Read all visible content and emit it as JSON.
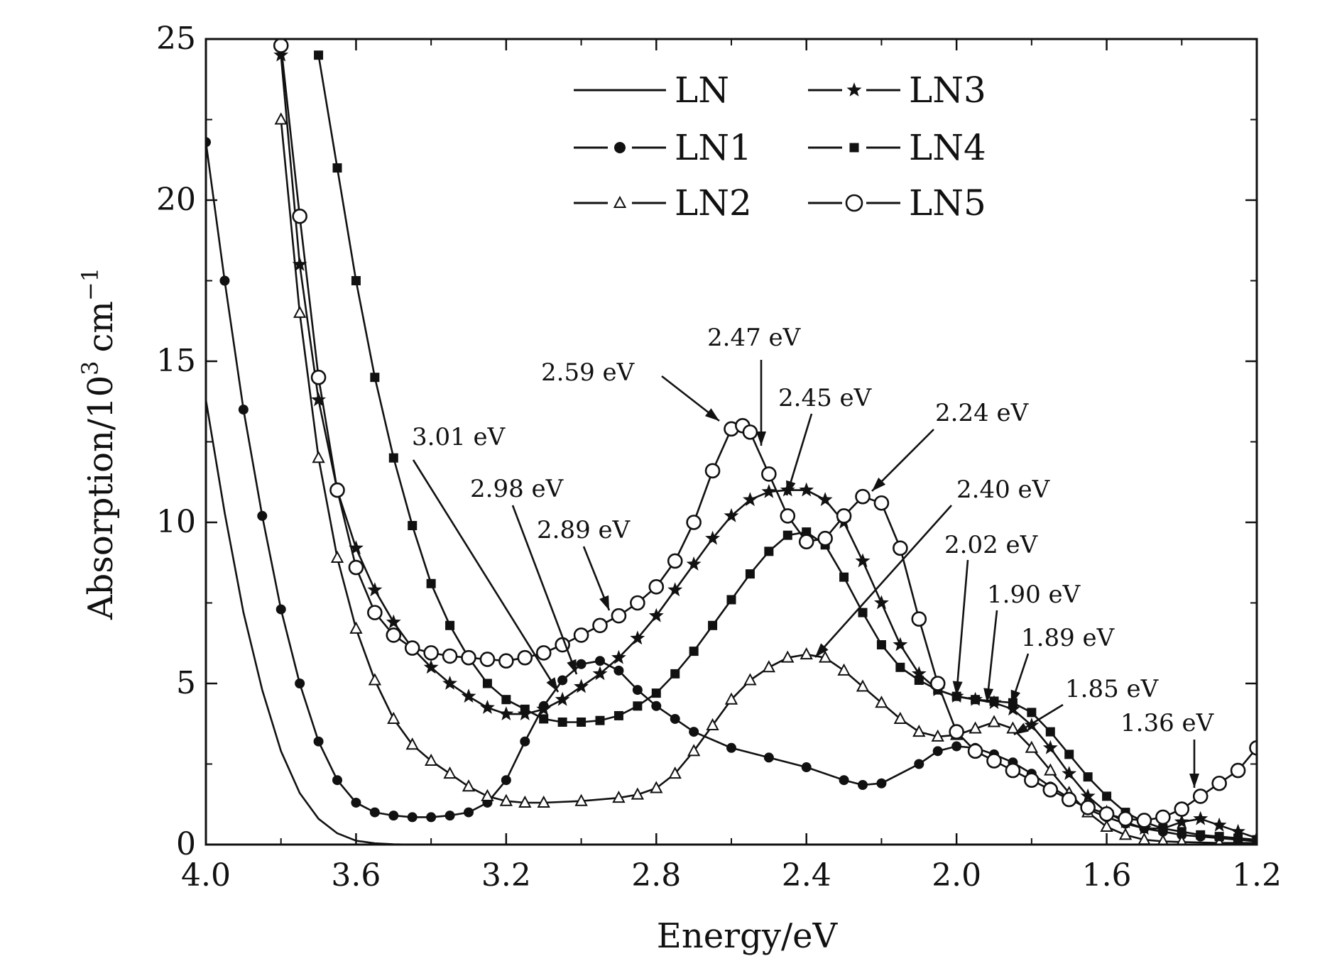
{
  "chart_data": {
    "type": "line",
    "title": "",
    "xlabel": "Energy/eV",
    "ylabel": "Absorption/10",
    "ylabel_sup": "3",
    "ylabel_unit": "cm",
    "ylabel_unit_sup": "−1",
    "xlim": [
      4.0,
      1.2
    ],
    "ylim": [
      0,
      25
    ],
    "x_reversed": true,
    "x_ticks": [
      4.0,
      3.6,
      3.2,
      2.8,
      2.4,
      2.0,
      1.6,
      1.2
    ],
    "x_tick_labels": [
      "4.0",
      "3.6",
      "3.2",
      "2.8",
      "2.4",
      "2.0",
      "1.6",
      "1.2"
    ],
    "y_ticks": [
      0,
      5,
      10,
      15,
      20,
      25
    ],
    "y_tick_labels": [
      "0",
      "5",
      "10",
      "15",
      "20",
      "25"
    ],
    "grid": false,
    "legend_position": "top-center",
    "series": [
      {
        "name": "LN",
        "marker": "none",
        "x": [
          4.0,
          3.95,
          3.9,
          3.85,
          3.8,
          3.75,
          3.7,
          3.65,
          3.6,
          3.55,
          3.5,
          3.45,
          3.4,
          3.3,
          3.2,
          3.0,
          2.6,
          2.2,
          1.8,
          1.4,
          1.2
        ],
        "y": [
          13.8,
          10.3,
          7.2,
          4.8,
          2.9,
          1.6,
          0.8,
          0.35,
          0.12,
          0.04,
          0.01,
          0,
          0,
          0,
          0,
          0,
          0,
          0,
          0,
          0,
          0
        ]
      },
      {
        "name": "LN1",
        "marker": "filled-circle",
        "x": [
          4.0,
          3.95,
          3.9,
          3.85,
          3.8,
          3.75,
          3.7,
          3.65,
          3.6,
          3.55,
          3.5,
          3.45,
          3.4,
          3.35,
          3.3,
          3.25,
          3.2,
          3.15,
          3.1,
          3.05,
          3.0,
          2.95,
          2.9,
          2.85,
          2.8,
          2.75,
          2.7,
          2.6,
          2.5,
          2.4,
          2.3,
          2.25,
          2.2,
          2.1,
          2.05,
          2.0,
          1.95,
          1.9,
          1.85,
          1.8,
          1.75,
          1.7,
          1.65,
          1.6,
          1.55,
          1.5,
          1.45,
          1.4,
          1.35,
          1.3,
          1.25,
          1.2
        ],
        "y": [
          21.8,
          17.5,
          13.5,
          10.2,
          7.3,
          5.0,
          3.2,
          2.0,
          1.3,
          1.0,
          0.9,
          0.85,
          0.85,
          0.9,
          1.0,
          1.3,
          2.0,
          3.2,
          4.3,
          5.1,
          5.6,
          5.7,
          5.4,
          4.8,
          4.3,
          3.9,
          3.5,
          3.0,
          2.7,
          2.4,
          2.0,
          1.85,
          1.9,
          2.5,
          2.9,
          3.05,
          3.0,
          2.8,
          2.55,
          2.2,
          1.8,
          1.45,
          1.1,
          0.85,
          0.65,
          0.5,
          0.4,
          0.3,
          0.25,
          0.2,
          0.15,
          0.1
        ]
      },
      {
        "name": "LN2",
        "marker": "open-triangle",
        "x": [
          3.8,
          3.75,
          3.7,
          3.65,
          3.6,
          3.55,
          3.5,
          3.45,
          3.4,
          3.35,
          3.3,
          3.25,
          3.2,
          3.15,
          3.1,
          3.0,
          2.9,
          2.85,
          2.8,
          2.75,
          2.7,
          2.65,
          2.6,
          2.55,
          2.5,
          2.45,
          2.4,
          2.35,
          2.3,
          2.25,
          2.2,
          2.15,
          2.1,
          2.05,
          2.0,
          1.95,
          1.9,
          1.85,
          1.8,
          1.75,
          1.7,
          1.65,
          1.6,
          1.55,
          1.5,
          1.45,
          1.4,
          1.3,
          1.2
        ],
        "y": [
          22.5,
          16.5,
          12.0,
          8.9,
          6.7,
          5.1,
          3.9,
          3.1,
          2.6,
          2.2,
          1.8,
          1.5,
          1.35,
          1.3,
          1.3,
          1.35,
          1.45,
          1.55,
          1.75,
          2.2,
          2.9,
          3.7,
          4.5,
          5.1,
          5.5,
          5.8,
          5.9,
          5.8,
          5.4,
          4.9,
          4.4,
          3.9,
          3.5,
          3.35,
          3.4,
          3.6,
          3.8,
          3.6,
          3.0,
          2.3,
          1.6,
          1.0,
          0.55,
          0.3,
          0.15,
          0.1,
          0.08,
          0.05,
          0.05
        ]
      },
      {
        "name": "LN3",
        "marker": "star",
        "x": [
          3.8,
          3.75,
          3.7,
          3.65,
          3.6,
          3.55,
          3.5,
          3.45,
          3.4,
          3.35,
          3.3,
          3.25,
          3.2,
          3.15,
          3.1,
          3.05,
          3.0,
          2.95,
          2.9,
          2.85,
          2.8,
          2.75,
          2.7,
          2.65,
          2.6,
          2.55,
          2.5,
          2.45,
          2.4,
          2.35,
          2.3,
          2.25,
          2.2,
          2.15,
          2.1,
          2.05,
          2.0,
          1.95,
          1.9,
          1.85,
          1.8,
          1.75,
          1.7,
          1.65,
          1.6,
          1.55,
          1.5,
          1.45,
          1.4,
          1.35,
          1.3,
          1.25,
          1.2
        ],
        "y": [
          24.5,
          18.0,
          13.8,
          11.0,
          9.2,
          7.9,
          6.9,
          6.1,
          5.5,
          5.0,
          4.6,
          4.25,
          4.05,
          4.05,
          4.2,
          4.5,
          4.9,
          5.3,
          5.8,
          6.4,
          7.1,
          7.9,
          8.7,
          9.5,
          10.2,
          10.7,
          10.95,
          11.0,
          11.0,
          10.7,
          10.0,
          8.8,
          7.5,
          6.2,
          5.3,
          4.8,
          4.6,
          4.5,
          4.4,
          4.2,
          3.7,
          3.0,
          2.2,
          1.5,
          1.0,
          0.7,
          0.5,
          0.5,
          0.7,
          0.8,
          0.6,
          0.4,
          0.2
        ]
      },
      {
        "name": "LN4",
        "marker": "filled-square",
        "x": [
          3.7,
          3.65,
          3.6,
          3.55,
          3.5,
          3.45,
          3.4,
          3.35,
          3.3,
          3.25,
          3.2,
          3.15,
          3.1,
          3.05,
          3.0,
          2.95,
          2.9,
          2.85,
          2.8,
          2.75,
          2.7,
          2.65,
          2.6,
          2.55,
          2.5,
          2.45,
          2.4,
          2.35,
          2.3,
          2.25,
          2.2,
          2.15,
          2.1,
          2.05,
          2.0,
          1.95,
          1.9,
          1.85,
          1.8,
          1.75,
          1.7,
          1.65,
          1.6,
          1.55,
          1.5,
          1.45,
          1.4,
          1.35,
          1.3,
          1.25,
          1.2
        ],
        "y": [
          24.5,
          21.0,
          17.5,
          14.5,
          12.0,
          9.9,
          8.1,
          6.8,
          5.8,
          5.0,
          4.5,
          4.2,
          3.9,
          3.8,
          3.8,
          3.85,
          4.0,
          4.3,
          4.7,
          5.3,
          6.0,
          6.8,
          7.6,
          8.4,
          9.1,
          9.6,
          9.7,
          9.3,
          8.3,
          7.2,
          6.2,
          5.5,
          5.1,
          4.8,
          4.6,
          4.5,
          4.45,
          4.4,
          4.1,
          3.5,
          2.8,
          2.1,
          1.5,
          1.0,
          0.7,
          0.5,
          0.4,
          0.3,
          0.25,
          0.2,
          0.15
        ]
      },
      {
        "name": "LN5",
        "marker": "open-circle",
        "x": [
          3.8,
          3.75,
          3.7,
          3.65,
          3.6,
          3.55,
          3.5,
          3.45,
          3.4,
          3.35,
          3.3,
          3.25,
          3.2,
          3.15,
          3.1,
          3.05,
          3.0,
          2.95,
          2.9,
          2.85,
          2.8,
          2.75,
          2.7,
          2.65,
          2.6,
          2.57,
          2.55,
          2.5,
          2.45,
          2.4,
          2.35,
          2.3,
          2.25,
          2.2,
          2.15,
          2.1,
          2.05,
          2.0,
          1.95,
          1.9,
          1.85,
          1.8,
          1.75,
          1.7,
          1.65,
          1.6,
          1.55,
          1.5,
          1.45,
          1.4,
          1.35,
          1.3,
          1.25,
          1.2
        ],
        "y": [
          24.8,
          19.5,
          14.5,
          11.0,
          8.6,
          7.2,
          6.5,
          6.1,
          5.95,
          5.85,
          5.8,
          5.75,
          5.7,
          5.8,
          5.95,
          6.2,
          6.5,
          6.8,
          7.1,
          7.5,
          8.0,
          8.8,
          10.0,
          11.6,
          12.9,
          13.0,
          12.8,
          11.5,
          10.2,
          9.4,
          9.5,
          10.2,
          10.8,
          10.6,
          9.2,
          7.0,
          5.0,
          3.5,
          2.9,
          2.6,
          2.3,
          2.0,
          1.7,
          1.4,
          1.15,
          0.95,
          0.8,
          0.75,
          0.85,
          1.1,
          1.5,
          1.9,
          2.3,
          3.0
        ]
      }
    ],
    "annotations": [
      {
        "text": "2.59 eV",
        "x": 2.59
      },
      {
        "text": "2.47 eV",
        "x": 2.47
      },
      {
        "text": "2.45 eV",
        "x": 2.45
      },
      {
        "text": "2.24 eV",
        "x": 2.24
      },
      {
        "text": "3.01 eV",
        "x": 3.01
      },
      {
        "text": "2.98 eV",
        "x": 2.98
      },
      {
        "text": "2.89 eV",
        "x": 2.89
      },
      {
        "text": "2.40 eV",
        "x": 2.4
      },
      {
        "text": "2.02 eV",
        "x": 2.02
      },
      {
        "text": "1.90 eV",
        "x": 1.9
      },
      {
        "text": "1.89 eV",
        "x": 1.89
      },
      {
        "text": "1.85 eV",
        "x": 1.85
      },
      {
        "text": "1.36 eV",
        "x": 1.36
      }
    ]
  }
}
